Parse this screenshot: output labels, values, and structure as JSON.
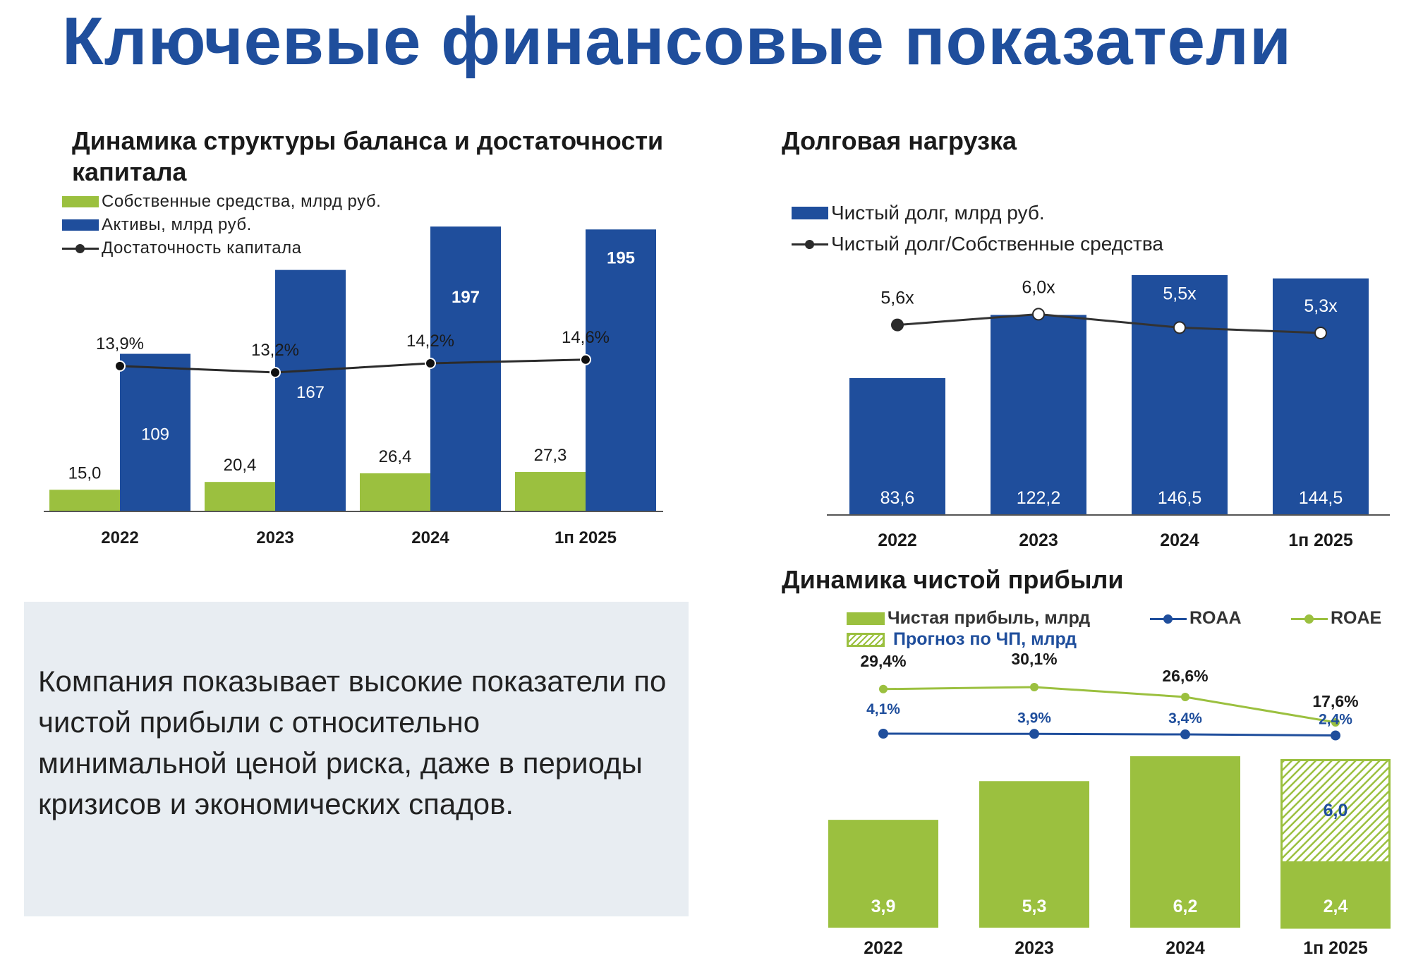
{
  "page": {
    "title": "Ключевые финансовые показатели",
    "description": "Компания показывает высокие показатели по чистой прибыли с относительно минимальной ценой риска, даже в периоды кризисов и экономических спадов."
  },
  "colors": {
    "dark_blue": "#1f4e9c",
    "green": "#9bc03f",
    "line_dark": "#2b2b2b"
  },
  "chart_data": [
    {
      "type": "bar",
      "title": "Динамика структуры баланса и достаточности капитала",
      "categories": [
        "2022",
        "2023",
        "2024",
        "1п 2025"
      ],
      "series": [
        {
          "name": "Собственные средства, млрд руб.",
          "type": "bar",
          "color": "#9bc03f",
          "values": [
            15.0,
            20.4,
            26.4,
            27.3
          ],
          "labels": [
            "15,0",
            "20,4",
            "26,4",
            "27,3"
          ]
        },
        {
          "name": "Активы, млрд руб.",
          "type": "bar",
          "color": "#1f4e9c",
          "values": [
            109,
            167,
            197,
            195
          ],
          "labels": [
            "109",
            "167",
            "197",
            "195"
          ]
        },
        {
          "name": "Достаточность капитала",
          "type": "line",
          "color": "#2b2b2b",
          "values": [
            13.9,
            13.2,
            14.2,
            14.6
          ],
          "labels": [
            "13,9%",
            "13,2%",
            "14,2%",
            "14,6%"
          ]
        }
      ],
      "ylim": [
        0,
        210
      ],
      "legend": "top-left",
      "grid": false
    },
    {
      "type": "bar",
      "title": "Долговая нагрузка",
      "categories": [
        "2022",
        "2023",
        "2024",
        "1п 2025"
      ],
      "series": [
        {
          "name": "Чистый долг, млрд руб.",
          "type": "bar",
          "color": "#1f4e9c",
          "values": [
            83.6,
            122.2,
            146.5,
            144.5
          ],
          "labels": [
            "83,6",
            "122,2",
            "146,5",
            "144,5"
          ]
        },
        {
          "name": "Чистый долг/Собственные средства",
          "type": "line",
          "color": "#2b2b2b",
          "values": [
            5.6,
            6.0,
            5.5,
            5.3
          ],
          "labels": [
            "5,6x",
            "6,0x",
            "5,5x",
            "5,3x"
          ]
        }
      ],
      "ylim": [
        0,
        155
      ],
      "legend": "top-left",
      "grid": false
    },
    {
      "type": "bar",
      "title": "Динамика чистой прибыли",
      "categories": [
        "2022",
        "2023",
        "2024",
        "1п 2025"
      ],
      "series": [
        {
          "name": "Чистая прибыль, млрд",
          "type": "bar",
          "color": "#9bc03f",
          "values": [
            3.9,
            5.3,
            6.2,
            2.4
          ],
          "labels": [
            "3,9",
            "5,3",
            "6,2",
            "2,4"
          ]
        },
        {
          "name": "Прогноз по ЧП, млрд",
          "type": "bar-hatched",
          "color": "#9bc03f",
          "values": [
            null,
            null,
            null,
            6.0
          ],
          "labels": [
            "",
            "",
            "",
            "6,0"
          ]
        },
        {
          "name": "ROAA",
          "type": "line",
          "color": "#1f4e9c",
          "values": [
            4.1,
            3.9,
            3.4,
            2.4
          ],
          "labels": [
            "4,1%",
            "3,9%",
            "3,4%",
            "2,4%"
          ]
        },
        {
          "name": "ROAE",
          "type": "line",
          "color": "#9bc03f",
          "values": [
            29.4,
            30.1,
            26.6,
            17.6
          ],
          "labels": [
            "29,4%",
            "30,1%",
            "26,6%",
            "17,6%"
          ]
        }
      ],
      "ylim": [
        0,
        6.5
      ],
      "legend": "top",
      "grid": false
    }
  ]
}
